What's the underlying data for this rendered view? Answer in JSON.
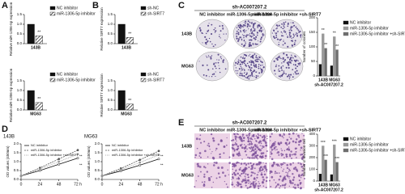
{
  "panel_labels": [
    "A",
    "B",
    "C",
    "D",
    "E"
  ],
  "image_panels": [
    {
      "header": "sh-AC007207.2",
      "columns": [
        "NC inhibitor",
        "miR-1306-5p inhibitor",
        "miR-1306-5p inhibitor +sh-SIRT7"
      ],
      "rows": [
        "143B",
        "MG63"
      ]
    },
    {
      "header": "sh-AC007207.2",
      "columns": [
        "NC inhibitor",
        "miR-1306-5p inhibitor",
        "miR-1306-5p inhibitor +sh-SIRT7"
      ],
      "rows": [
        "143B",
        "MG63"
      ]
    }
  ],
  "chart_data": [
    {
      "type": "bar",
      "ylabel": "Relative miR-1306-5p expression",
      "categories": [
        "143B"
      ],
      "annotation": "**",
      "series": [
        {
          "name": "NC inhibitor",
          "color": "#111111",
          "values": [
            1.0
          ]
        },
        {
          "name": "miR-1306-5p inhibitor",
          "color": "#111111",
          "hatch": true,
          "values": [
            0.4
          ]
        }
      ],
      "ylim": [
        0,
        1.5
      ],
      "yticks": [
        {
          "value": 0,
          "label": "0.0"
        },
        {
          "value": 0.5,
          "label": "0.5"
        },
        {
          "value": 1,
          "label": "1.0"
        },
        {
          "value": 1.5,
          "label": "1.5"
        }
      ]
    },
    {
      "type": "bar",
      "ylabel": "Relative miR-1306-5p expression",
      "categories": [
        "MG63"
      ],
      "annotation": "**",
      "series": [
        {
          "name": "NC inhibitor",
          "color": "#111111",
          "values": [
            1.0
          ]
        },
        {
          "name": "miR-1306-5p inhibitor",
          "color": "#111111",
          "hatch": true,
          "values": [
            0.38
          ]
        }
      ],
      "ylim": [
        0,
        1.5
      ],
      "yticks": [
        {
          "value": 0,
          "label": "0.0"
        },
        {
          "value": 0.5,
          "label": "0.5"
        },
        {
          "value": 1,
          "label": "1.0"
        },
        {
          "value": 1.5,
          "label": "1.5"
        }
      ]
    },
    {
      "type": "bar",
      "ylabel": "Relative SIRT7 expression",
      "categories": [
        "143B"
      ],
      "annotation": "**",
      "series": [
        {
          "name": "sh-NC",
          "color": "#111111",
          "values": [
            1.0
          ]
        },
        {
          "name": "sh-SIRT7",
          "color": "#111111",
          "hatch": true,
          "values": [
            0.32
          ]
        }
      ],
      "ylim": [
        0,
        1.5
      ],
      "yticks": [
        {
          "value": 0,
          "label": "0.0"
        },
        {
          "value": 0.5,
          "label": "0.5"
        },
        {
          "value": 1,
          "label": "1.0"
        },
        {
          "value": 1.5,
          "label": "1.5"
        }
      ]
    },
    {
      "type": "bar",
      "ylabel": "Relative SIRT7 expression",
      "categories": [
        "MG63"
      ],
      "annotation": "**",
      "series": [
        {
          "name": "sh-NC",
          "color": "#111111",
          "values": [
            1.0
          ]
        },
        {
          "name": "sh-SIRT7",
          "color": "#111111",
          "hatch": true,
          "values": [
            0.3
          ]
        }
      ],
      "ylim": [
        0,
        1.5
      ],
      "yticks": [
        {
          "value": 0,
          "label": "0.0"
        },
        {
          "value": 0.5,
          "label": "0.5"
        },
        {
          "value": 1,
          "label": "1.0"
        },
        {
          "value": 1.5,
          "label": "1.5"
        }
      ]
    },
    {
      "type": "bar",
      "ylabel": "Number of colonies",
      "xlabel": "sh-AC007207.2",
      "categories": [
        "143B",
        "MG63"
      ],
      "annotation": "**",
      "series": [
        {
          "name": "NC inhibitor",
          "color": "#111111",
          "values": [
            40,
            35
          ]
        },
        {
          "name": "miR-1306-5p inhibitor",
          "color": "#9a9a9a",
          "values": [
            145,
            135
          ]
        },
        {
          "name": "miR-1306-5p inhibitor +sh-SIRT7",
          "color": "#6e6e6e",
          "values": [
            95,
            90
          ]
        }
      ],
      "ylim": [
        0,
        200
      ],
      "yticks": [
        0,
        50,
        100,
        150,
        200
      ]
    },
    {
      "type": "line",
      "title": "143B",
      "ylabel": "OD values (450nm)",
      "annotation": "**",
      "x": [
        0,
        24,
        48,
        72
      ],
      "xlim": [
        0,
        72
      ],
      "xticks": [
        0,
        24,
        48,
        {
          "value": 72,
          "label": "72 h"
        }
      ],
      "series": [
        {
          "name": "NC inhibitor",
          "color": "#111111",
          "values": [
            0.2,
            0.5,
            0.85,
            1.2
          ]
        },
        {
          "name": "miR-1306-5p inhibitor",
          "color": "#555555",
          "values": [
            0.2,
            0.65,
            1.15,
            1.65
          ]
        },
        {
          "name": "miR-1306-5p inhibitor +sh-SIRT7",
          "color": "#999999",
          "values": [
            0.2,
            0.58,
            1.0,
            1.42
          ]
        }
      ],
      "ylim": [
        0,
        2
      ],
      "yticks": [
        {
          "value": 0,
          "label": "0.0"
        },
        {
          "value": 0.5,
          "label": "0.5"
        },
        {
          "value": 1,
          "label": "1.0"
        },
        {
          "value": 1.5,
          "label": "1.5"
        },
        {
          "value": 2,
          "label": "2.0"
        }
      ]
    },
    {
      "type": "line",
      "title": "MG63",
      "ylabel": "OD values (450nm)",
      "annotation": "**",
      "x": [
        0,
        24,
        48,
        72
      ],
      "xlim": [
        0,
        72
      ],
      "xticks": [
        0,
        24,
        48,
        {
          "value": 72,
          "label": "72 h"
        }
      ],
      "series": [
        {
          "name": "NC inhibitor",
          "color": "#111111",
          "values": [
            0.2,
            0.48,
            0.8,
            1.15
          ]
        },
        {
          "name": "miR-1306-5p inhibitor",
          "color": "#555555",
          "values": [
            0.2,
            0.62,
            1.1,
            1.6
          ]
        },
        {
          "name": "miR-1306-5p inhibitor +sh-SIRT7",
          "color": "#999999",
          "values": [
            0.2,
            0.55,
            0.95,
            1.38
          ]
        }
      ],
      "ylim": [
        0,
        2
      ],
      "yticks": [
        {
          "value": 0,
          "label": "0.0"
        },
        {
          "value": 0.5,
          "label": "0.5"
        },
        {
          "value": 1,
          "label": "1.0"
        },
        {
          "value": 1.5,
          "label": "1.5"
        },
        {
          "value": 2,
          "label": "2.0"
        }
      ]
    },
    {
      "type": "bar",
      "ylabel": "Number of invasion cell",
      "xlabel": "sh-AC007207.2",
      "categories": [
        "143B",
        "MG63"
      ],
      "annotation": "***",
      "series": [
        {
          "name": "NC inhibitor",
          "color": "#111111",
          "values": [
            60,
            55
          ]
        },
        {
          "name": "miR-1306-5p inhibitor",
          "color": "#9a9a9a",
          "values": [
            300,
            310
          ]
        },
        {
          "name": "miR-1306-5p inhibitor +sh-SIRT7",
          "color": "#6e6e6e",
          "values": [
            180,
            160
          ]
        }
      ],
      "ylim": [
        0,
        400
      ],
      "yticks": [
        0,
        100,
        200,
        300,
        400
      ]
    }
  ]
}
